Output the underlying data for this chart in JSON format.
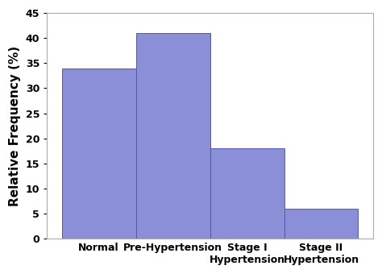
{
  "categories": [
    "Normal",
    "Pre-Hypertension",
    "Stage I\nHypertension",
    "Stage II\nHypertension"
  ],
  "values": [
    34,
    41,
    18,
    6
  ],
  "bar_color": "#8b8fd8",
  "bar_edgecolor": "#5555aa",
  "ylabel": "Relative Frequency (%)",
  "ylim": [
    0,
    45
  ],
  "yticks": [
    0,
    5,
    10,
    15,
    20,
    25,
    30,
    35,
    40,
    45
  ],
  "background_color": "#ffffff",
  "ylabel_fontsize": 11,
  "tick_fontsize": 9,
  "bar_width": 1.0,
  "spine_color": "#aaaaaa",
  "figsize": [
    4.74,
    3.4
  ],
  "dpi": 100
}
